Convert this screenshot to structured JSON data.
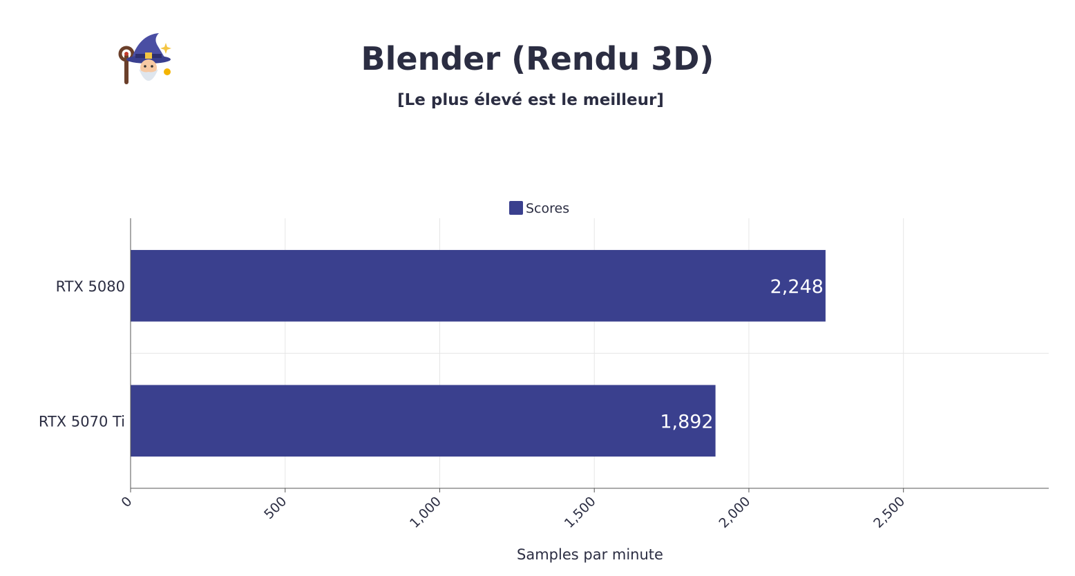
{
  "chart_data": {
    "type": "bar",
    "orientation": "horizontal",
    "title": "Blender (Rendu 3D)",
    "subtitle": "[Le plus élevé est le meilleur]",
    "xlabel": "Samples par minute",
    "ylabel": "",
    "categories": [
      "RTX 5080",
      "RTX 5070 Ti"
    ],
    "series": [
      {
        "name": "Scores",
        "values": [
          2248,
          1892
        ],
        "value_labels": [
          "2,248",
          "1,892"
        ],
        "color": "#3a408e"
      }
    ],
    "xlim": [
      0,
      2970
    ],
    "x_ticks": [
      0,
      500,
      1000,
      1500,
      2000,
      2500
    ],
    "x_tick_labels": [
      "0",
      "500",
      "1,000",
      "1,500",
      "2,000",
      "2,500"
    ],
    "grid": true,
    "legend_position": "top-center",
    "logo_icon": "wizard-icon"
  }
}
